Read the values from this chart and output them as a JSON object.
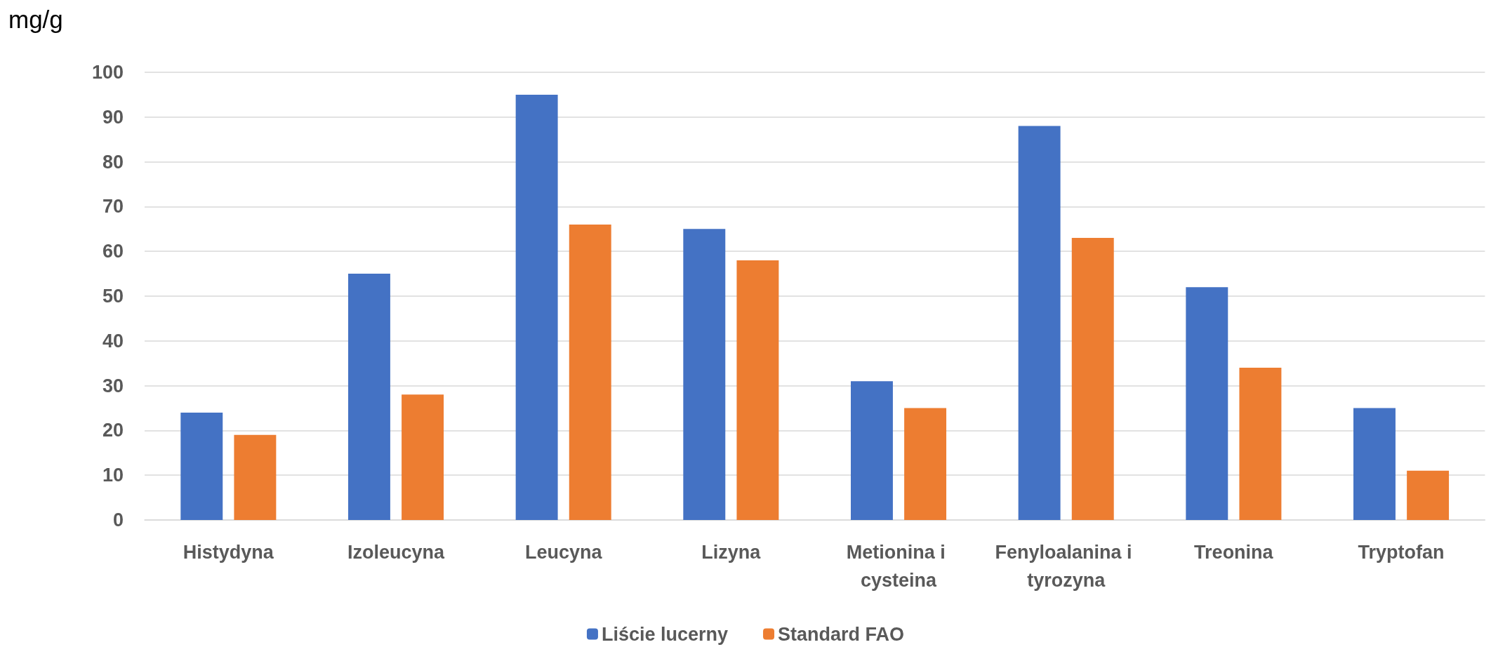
{
  "chart_data": {
    "type": "bar",
    "ylabel": "mg/g",
    "categories": [
      "Histydyna",
      "Izoleucyna",
      "Leucyna",
      "Lizyna",
      "Metionina i cysteina",
      "Fenyloalanina i tyrozyna",
      "Treonina",
      "Tryptofan"
    ],
    "series": [
      {
        "name": "Liście lucerny",
        "color": "#4472c4",
        "values": [
          24,
          55,
          95,
          65,
          31,
          88,
          52,
          25
        ]
      },
      {
        "name": "Standard FAO",
        "color": "#ed7d31",
        "values": [
          19,
          28,
          66,
          58,
          25,
          63,
          34,
          11
        ]
      }
    ],
    "ylim": [
      0,
      100
    ],
    "yticks": [
      0,
      10,
      20,
      30,
      40,
      50,
      60,
      70,
      80,
      90,
      100
    ],
    "grid": "y",
    "legend": "bottom"
  }
}
